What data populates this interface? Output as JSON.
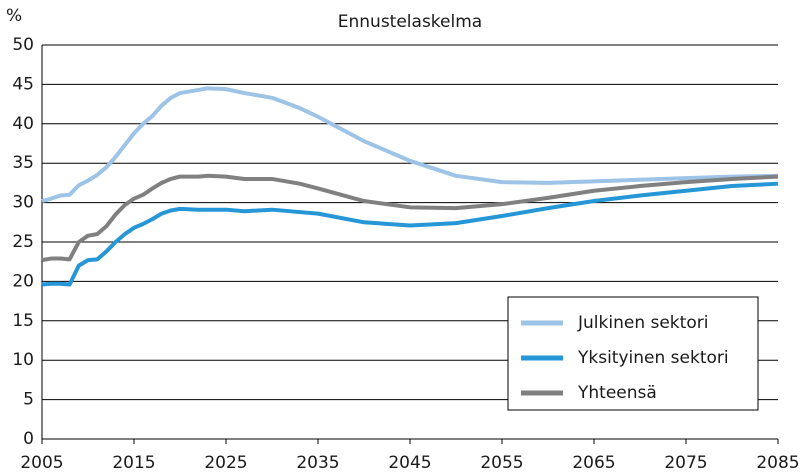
{
  "chart_data": {
    "type": "line",
    "title": "Ennustelaskelma",
    "y_label": "%",
    "x": [
      2005,
      2006,
      2007,
      2008,
      2009,
      2010,
      2011,
      2012,
      2013,
      2014,
      2015,
      2016,
      2017,
      2018,
      2019,
      2020,
      2022,
      2023,
      2025,
      2027,
      2030,
      2033,
      2035,
      2040,
      2045,
      2050,
      2055,
      2060,
      2065,
      2070,
      2075,
      2080,
      2085
    ],
    "series": [
      {
        "name": "Julkinen sektori",
        "color": "#9dc3e6",
        "values": [
          30.2,
          30.5,
          30.9,
          31.0,
          32.2,
          32.8,
          33.5,
          34.5,
          35.8,
          37.3,
          38.8,
          40.0,
          41.0,
          42.3,
          43.3,
          43.9,
          44.3,
          44.5,
          44.4,
          43.9,
          43.3,
          42.0,
          40.9,
          37.8,
          35.3,
          33.4,
          32.6,
          32.5,
          32.7,
          32.9,
          33.1,
          33.3,
          33.4
        ]
      },
      {
        "name": "Yksityinen sektori",
        "color": "#2596d6",
        "values": [
          19.6,
          19.7,
          19.7,
          19.6,
          22.0,
          22.7,
          22.8,
          23.8,
          25.0,
          26.0,
          26.8,
          27.3,
          27.9,
          28.6,
          29.0,
          29.2,
          29.1,
          29.1,
          29.1,
          28.9,
          29.1,
          28.8,
          28.6,
          27.5,
          27.1,
          27.4,
          28.3,
          29.3,
          30.2,
          30.9,
          31.5,
          32.1,
          32.4
        ]
      },
      {
        "name": "Yhteensä",
        "color": "#808080",
        "values": [
          22.7,
          22.9,
          22.9,
          22.8,
          25.0,
          25.8,
          26.0,
          27.0,
          28.5,
          29.7,
          30.5,
          31.0,
          31.8,
          32.5,
          33.0,
          33.3,
          33.3,
          33.4,
          33.3,
          33.0,
          33.0,
          32.4,
          31.8,
          30.2,
          29.4,
          29.3,
          29.8,
          30.6,
          31.5,
          32.1,
          32.6,
          33.0,
          33.3
        ]
      }
    ],
    "xlim": [
      2005,
      2085
    ],
    "xticks": [
      2005,
      2015,
      2025,
      2035,
      2045,
      2055,
      2065,
      2075,
      2085
    ],
    "ylim": [
      0,
      50
    ],
    "yticks": [
      0,
      5,
      10,
      15,
      20,
      25,
      30,
      35,
      40,
      45,
      50
    ],
    "grid": true,
    "legend": "lower-right"
  }
}
